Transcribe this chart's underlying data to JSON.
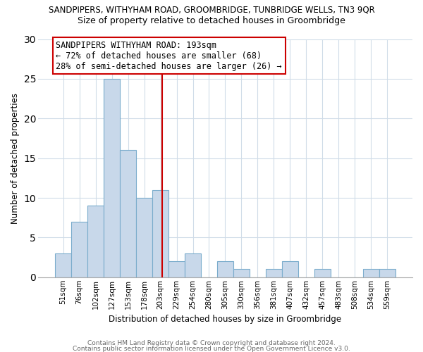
{
  "title_top": "SANDPIPERS, WITHYHAM ROAD, GROOMBRIDGE, TUNBRIDGE WELLS, TN3 9QR",
  "title_sub": "Size of property relative to detached houses in Groombridge",
  "xlabel": "Distribution of detached houses by size in Groombridge",
  "ylabel": "Number of detached properties",
  "footer1": "Contains HM Land Registry data © Crown copyright and database right 2024.",
  "footer2": "Contains public sector information licensed under the Open Government Licence v3.0.",
  "bar_labels": [
    "51sqm",
    "76sqm",
    "102sqm",
    "127sqm",
    "153sqm",
    "178sqm",
    "203sqm",
    "229sqm",
    "254sqm",
    "280sqm",
    "305sqm",
    "330sqm",
    "356sqm",
    "381sqm",
    "407sqm",
    "432sqm",
    "457sqm",
    "483sqm",
    "508sqm",
    "534sqm",
    "559sqm"
  ],
  "bar_values": [
    3,
    7,
    9,
    25,
    16,
    10,
    11,
    2,
    3,
    0,
    2,
    1,
    0,
    1,
    2,
    0,
    1,
    0,
    0,
    1,
    1
  ],
  "bar_color": "#c8d8ea",
  "bar_edge_color": "#7aaccc",
  "ylim": [
    0,
    30
  ],
  "yticks": [
    0,
    5,
    10,
    15,
    20,
    25,
    30
  ],
  "vline_color": "#cc0000",
  "annotation_title": "SANDPIPERS WITHYHAM ROAD: 193sqm",
  "annotation_line1": "← 72% of detached houses are smaller (68)",
  "annotation_line2": "28% of semi-detached houses are larger (26) →",
  "annotation_box_color": "#ffffff",
  "annotation_box_edge": "#cc0000",
  "background_color": "#ffffff",
  "grid_color": "#d0dce8",
  "title_fontsize": 8.5,
  "subtitle_fontsize": 9.0,
  "footer_fontsize": 6.5,
  "axis_label_fontsize": 8.5,
  "tick_fontsize": 7.5,
  "annot_fontsize": 8.5
}
